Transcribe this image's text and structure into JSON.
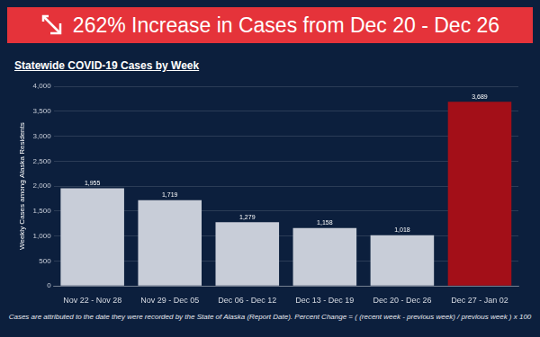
{
  "chart_data": {
    "type": "bar",
    "title": "262% Increase in Cases from Dec 20 - Dec 26",
    "subtitle": "Statewide COVID-19 Cases by Week",
    "y_label": "Weekly Cases among Alaska Residents",
    "note": "Cases are attributed to the date they were recorded by the State of Alaska (Report Date). Percent Change = ( (recent week - previous week) / previous week ) x 100",
    "categories": [
      "Nov 22 - Nov 28",
      "Nov 29 - Dec 05",
      "Dec 06 - Dec 12",
      "Dec 13 - Dec 19",
      "Dec 20 - Dec 26",
      "Dec 27 - Jan 02"
    ],
    "values": [
      1955,
      1719,
      1279,
      1158,
      1018,
      3689
    ],
    "value_labels": [
      "1,955",
      "1,719",
      "1,279",
      "1,158",
      "1,018",
      "3,689"
    ],
    "colors": [
      "#c8cdd8",
      "#c8cdd8",
      "#c8cdd8",
      "#c8cdd8",
      "#c8cdd8",
      "#a30f18"
    ],
    "ylim": [
      0,
      4000
    ],
    "yticks": [
      0,
      500,
      {
        "value": 1000,
        "label": "1,000"
      },
      {
        "value": 1500,
        "label": "1,500"
      },
      {
        "value": 2000,
        "label": "2,000"
      },
      {
        "value": 2500,
        "label": "2,500"
      },
      {
        "value": 3000,
        "label": "3,000"
      },
      {
        "value": 3500,
        "label": "3,500"
      },
      {
        "value": 4000,
        "label": "4,000"
      }
    ],
    "grid": true,
    "data_labels": true
  }
}
